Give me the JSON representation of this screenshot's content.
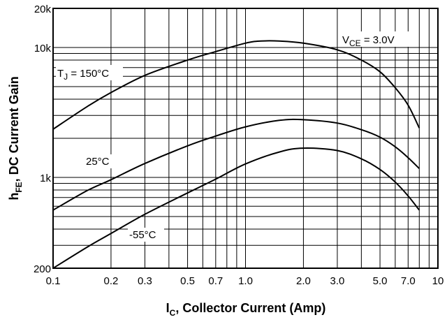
{
  "chart_data": {
    "type": "line",
    "x_scale": "log",
    "y_scale": "log",
    "xlim": [
      0.1,
      10
    ],
    "ylim": [
      200,
      20000
    ],
    "grid": true,
    "xlabel": {
      "main": "I",
      "sub": "C",
      "rest": ", Collector Current (Amp)"
    },
    "ylabel": {
      "main": "h",
      "sub": "FE",
      "rest": ", DC Current Gain"
    },
    "x_ticks": [
      {
        "value": 0.1,
        "label": "0.1"
      },
      {
        "value": 0.2,
        "label": "0.2"
      },
      {
        "value": 0.3,
        "label": "0.3"
      },
      {
        "value": 0.5,
        "label": "0.5"
      },
      {
        "value": 0.7,
        "label": "0.7"
      },
      {
        "value": 1.0,
        "label": "1.0"
      },
      {
        "value": 2.0,
        "label": "2.0"
      },
      {
        "value": 3.0,
        "label": "3.0"
      },
      {
        "value": 5.0,
        "label": "5.0"
      },
      {
        "value": 7.0,
        "label": "7.0"
      },
      {
        "value": 10,
        "label": "10"
      }
    ],
    "y_ticks": [
      {
        "value": 200,
        "label": "200"
      },
      {
        "value": 1000,
        "label": "1k"
      },
      {
        "value": 10000,
        "label": "10k"
      },
      {
        "value": 20000,
        "label": "20k"
      }
    ],
    "condition": {
      "main": "V",
      "sub": "CE",
      "rest": " = 3.0V"
    },
    "series": [
      {
        "name": "150°C",
        "label": {
          "main": "T",
          "sub": "J",
          "rest": " = 150°C"
        },
        "x": [
          0.1,
          0.15,
          0.2,
          0.3,
          0.5,
          0.7,
          1.0,
          1.2,
          1.5,
          2.0,
          3.0,
          4.0,
          5.0,
          6.0,
          7.0,
          8.0
        ],
        "y": [
          2350,
          3500,
          4500,
          6100,
          8000,
          9300,
          10800,
          11200,
          11200,
          10800,
          9600,
          8000,
          6500,
          4900,
          3600,
          2400
        ]
      },
      {
        "name": "25°C",
        "label": {
          "main": "25°C",
          "sub": "",
          "rest": ""
        },
        "x": [
          0.1,
          0.15,
          0.2,
          0.3,
          0.5,
          0.7,
          1.0,
          1.5,
          2.0,
          3.0,
          4.0,
          5.0,
          6.0,
          7.0,
          8.0
        ],
        "y": [
          560,
          790,
          960,
          1280,
          1750,
          2080,
          2450,
          2750,
          2780,
          2620,
          2330,
          2040,
          1720,
          1420,
          1170
        ]
      },
      {
        "name": "-55°C",
        "label": {
          "main": "-55°C",
          "sub": "",
          "rest": ""
        },
        "x": [
          0.1,
          0.15,
          0.2,
          0.3,
          0.5,
          0.7,
          1.0,
          1.5,
          2.0,
          3.0,
          4.0,
          5.0,
          6.0,
          7.0,
          8.0
        ],
        "y": [
          200,
          290,
          370,
          520,
          760,
          970,
          1270,
          1570,
          1680,
          1610,
          1390,
          1150,
          920,
          720,
          560
        ]
      }
    ]
  }
}
